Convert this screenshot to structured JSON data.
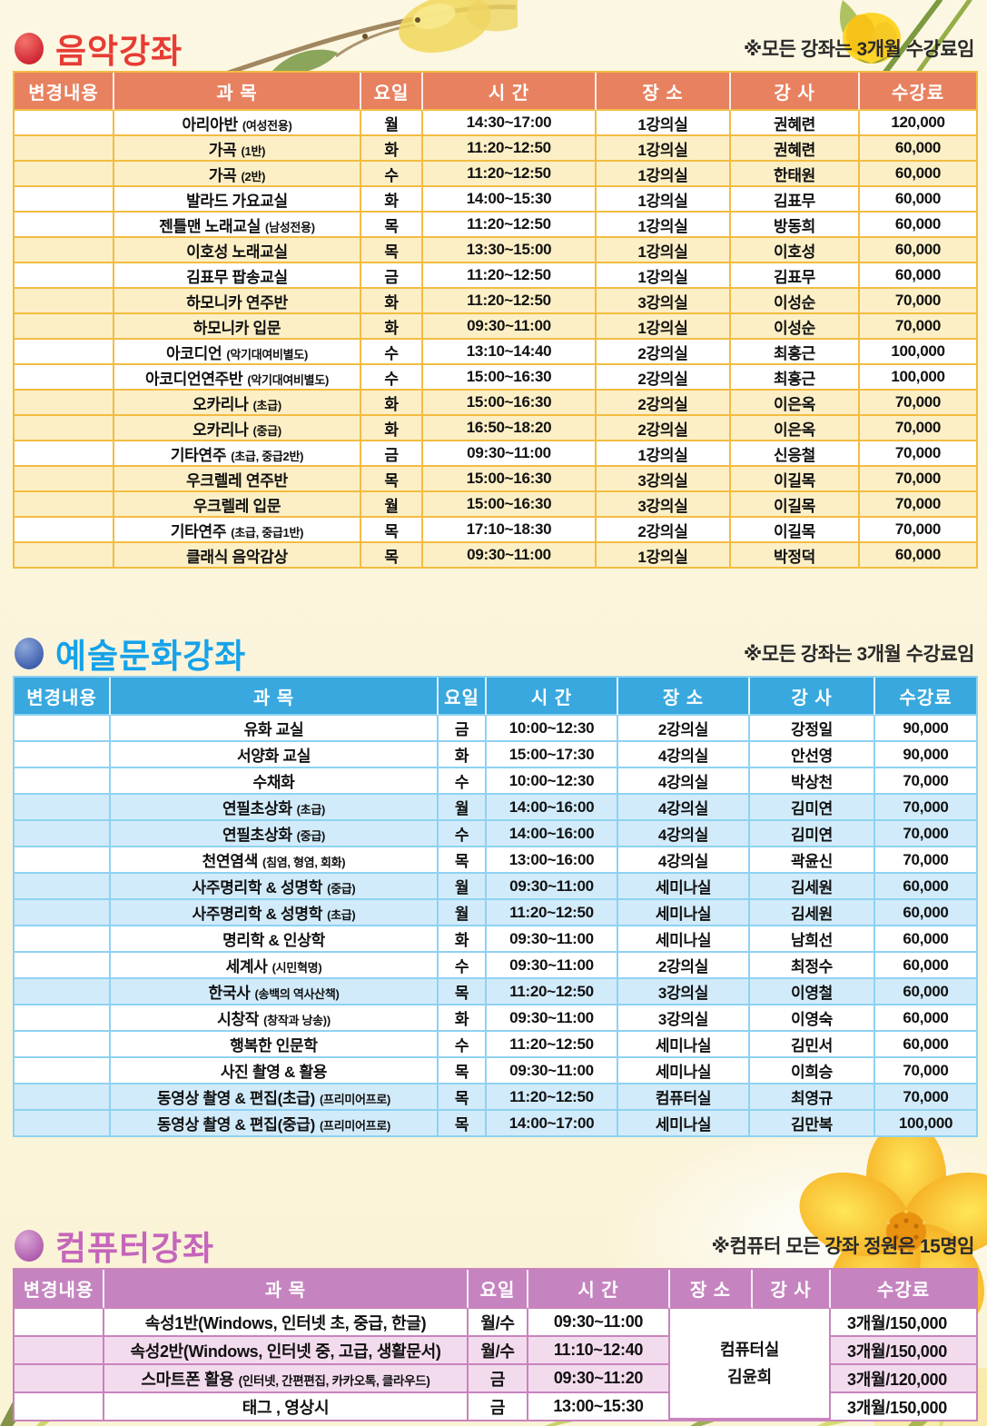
{
  "page": {
    "background": "#FBF4DA"
  },
  "music": {
    "title": "음악강좌",
    "note": "※모든 강좌는 3개월 수강료임",
    "headers": [
      "변경내용",
      "과 목",
      "요일",
      "시 간",
      "장 소",
      "강 사",
      "수강료"
    ],
    "colors": {
      "title": "#E73C35",
      "header_bg": "#E8815F",
      "border": "#F3BC41",
      "shade": "#FCEFC6",
      "bullet_hi": "#F3746A",
      "bullet_lo": "#CE2130"
    },
    "rows": [
      {
        "subject": "아리아반",
        "subject_note": "(여성전용)",
        "day": "월",
        "time": "14:30~17:00",
        "place": "1강의실",
        "instructor": "권혜련",
        "fee": "120,000",
        "shaded": false
      },
      {
        "subject": "가곡",
        "subject_note": "(1반)",
        "day": "화",
        "time": "11:20~12:50",
        "place": "1강의실",
        "instructor": "권혜련",
        "fee": "60,000",
        "shaded": true
      },
      {
        "subject": "가곡",
        "subject_note": "(2반)",
        "day": "수",
        "time": "11:20~12:50",
        "place": "1강의실",
        "instructor": "한태원",
        "fee": "60,000",
        "shaded": true
      },
      {
        "subject": "발라드 가요교실",
        "subject_note": "",
        "day": "화",
        "time": "14:00~15:30",
        "place": "1강의실",
        "instructor": "김표무",
        "fee": "60,000",
        "shaded": false
      },
      {
        "subject": "젠틀맨 노래교실",
        "subject_note": "(남성전용)",
        "day": "목",
        "time": "11:20~12:50",
        "place": "1강의실",
        "instructor": "방동희",
        "fee": "60,000",
        "shaded": false
      },
      {
        "subject": "이호성 노래교실",
        "subject_note": "",
        "day": "목",
        "time": "13:30~15:00",
        "place": "1강의실",
        "instructor": "이호성",
        "fee": "60,000",
        "shaded": true
      },
      {
        "subject": "김표무 팝송교실",
        "subject_note": "",
        "day": "금",
        "time": "11:20~12:50",
        "place": "1강의실",
        "instructor": "김표무",
        "fee": "60,000",
        "shaded": false
      },
      {
        "subject": "하모니카 연주반",
        "subject_note": "",
        "day": "화",
        "time": "11:20~12:50",
        "place": "3강의실",
        "instructor": "이성순",
        "fee": "70,000",
        "shaded": true
      },
      {
        "subject": "하모니카 입문",
        "subject_note": "",
        "day": "화",
        "time": "09:30~11:00",
        "place": "1강의실",
        "instructor": "이성순",
        "fee": "70,000",
        "shaded": true
      },
      {
        "subject": "아코디언",
        "subject_note": "(악기대여비별도)",
        "day": "수",
        "time": "13:10~14:40",
        "place": "2강의실",
        "instructor": "최홍근",
        "fee": "100,000",
        "shaded": false
      },
      {
        "subject": "아코디언연주반",
        "subject_note": "(악기대여비별도)",
        "day": "수",
        "time": "15:00~16:30",
        "place": "2강의실",
        "instructor": "최홍근",
        "fee": "100,000",
        "shaded": false
      },
      {
        "subject": "오카리나",
        "subject_note": "(초급)",
        "day": "화",
        "time": "15:00~16:30",
        "place": "2강의실",
        "instructor": "이은옥",
        "fee": "70,000",
        "shaded": true
      },
      {
        "subject": "오카리나",
        "subject_note": "(중급)",
        "day": "화",
        "time": "16:50~18:20",
        "place": "2강의실",
        "instructor": "이은옥",
        "fee": "70,000",
        "shaded": true
      },
      {
        "subject": "기타연주",
        "subject_note": "(초급, 중급2반)",
        "day": "금",
        "time": "09:30~11:00",
        "place": "1강의실",
        "instructor": "신응철",
        "fee": "70,000",
        "shaded": false
      },
      {
        "subject": "우크렐레 연주반",
        "subject_note": "",
        "day": "목",
        "time": "15:00~16:30",
        "place": "3강의실",
        "instructor": "이길목",
        "fee": "70,000",
        "shaded": true
      },
      {
        "subject": "우크렐레 입문",
        "subject_note": "",
        "day": "월",
        "time": "15:00~16:30",
        "place": "3강의실",
        "instructor": "이길목",
        "fee": "70,000",
        "shaded": true
      },
      {
        "subject": "기타연주",
        "subject_note": "(초급, 중급1반)",
        "day": "목",
        "time": "17:10~18:30",
        "place": "2강의실",
        "instructor": "이길목",
        "fee": "70,000",
        "shaded": false
      },
      {
        "subject": "클래식 음악감상",
        "subject_note": "",
        "day": "목",
        "time": "09:30~11:00",
        "place": "1강의실",
        "instructor": "박정덕",
        "fee": "60,000",
        "shaded": true
      }
    ]
  },
  "art": {
    "title": "예술문화강좌",
    "note": "※모든 강좌는 3개월 수강료임",
    "headers": [
      "변경내용",
      "과 목",
      "요일",
      "시 간",
      "장 소",
      "강 사",
      "수강료"
    ],
    "colors": {
      "title": "#16A2E9",
      "header_bg": "#38A8DF",
      "border": "#8ED2F3",
      "shade": "#D2EBFA",
      "bullet_hi": "#8FA8DB",
      "bullet_lo": "#3A5CAB"
    },
    "rows": [
      {
        "subject": "유화 교실",
        "subject_note": "",
        "day": "금",
        "time": "10:00~12:30",
        "place": "2강의실",
        "instructor": "강정일",
        "fee": "90,000",
        "shaded": false
      },
      {
        "subject": "서양화 교실",
        "subject_note": "",
        "day": "화",
        "time": "15:00~17:30",
        "place": "4강의실",
        "instructor": "안선영",
        "fee": "90,000",
        "shaded": false
      },
      {
        "subject": "수채화",
        "subject_note": "",
        "day": "수",
        "time": "10:00~12:30",
        "place": "4강의실",
        "instructor": "박상천",
        "fee": "70,000",
        "shaded": false
      },
      {
        "subject": "연필초상화",
        "subject_note": "(초급)",
        "day": "월",
        "time": "14:00~16:00",
        "place": "4강의실",
        "instructor": "김미연",
        "fee": "70,000",
        "shaded": true
      },
      {
        "subject": "연필초상화",
        "subject_note": "(중급)",
        "day": "수",
        "time": "14:00~16:00",
        "place": "4강의실",
        "instructor": "김미연",
        "fee": "70,000",
        "shaded": true
      },
      {
        "subject": "천연염색",
        "subject_note": "(침염, 형염, 회화)",
        "day": "목",
        "time": "13:00~16:00",
        "place": "4강의실",
        "instructor": "곽윤신",
        "fee": "70,000",
        "shaded": false
      },
      {
        "subject": "사주명리학 & 성명학",
        "subject_note": "(중급)",
        "day": "월",
        "time": "09:30~11:00",
        "place": "세미나실",
        "instructor": "김세원",
        "fee": "60,000",
        "shaded": true
      },
      {
        "subject": "사주명리학 & 성명학",
        "subject_note": "(초급)",
        "day": "월",
        "time": "11:20~12:50",
        "place": "세미나실",
        "instructor": "김세원",
        "fee": "60,000",
        "shaded": true
      },
      {
        "subject": "명리학 & 인상학",
        "subject_note": "",
        "day": "화",
        "time": "09:30~11:00",
        "place": "세미나실",
        "instructor": "남희선",
        "fee": "60,000",
        "shaded": false
      },
      {
        "subject": "세계사",
        "subject_note": "(시민혁명)",
        "day": "수",
        "time": "09:30~11:00",
        "place": "2강의실",
        "instructor": "최정수",
        "fee": "60,000",
        "shaded": false
      },
      {
        "subject": "한국사",
        "subject_note": "(송백의 역사산책)",
        "day": "목",
        "time": "11:20~12:50",
        "place": "3강의실",
        "instructor": "이영철",
        "fee": "60,000",
        "shaded": true
      },
      {
        "subject": "시창작",
        "subject_note": "(창작과 낭송))",
        "day": "화",
        "time": "09:30~11:00",
        "place": "3강의실",
        "instructor": "이영숙",
        "fee": "60,000",
        "shaded": false
      },
      {
        "subject": "행복한 인문학",
        "subject_note": "",
        "day": "수",
        "time": "11:20~12:50",
        "place": "세미나실",
        "instructor": "김민서",
        "fee": "60,000",
        "shaded": false
      },
      {
        "subject": "사진 촬영 & 활용",
        "subject_note": "",
        "day": "목",
        "time": "09:30~11:00",
        "place": "세미나실",
        "instructor": "이희승",
        "fee": "70,000",
        "shaded": false
      },
      {
        "subject": "동영상 촬영 & 편집(초급)",
        "subject_note": "(프리미어프로)",
        "day": "목",
        "time": "11:20~12:50",
        "place": "컴퓨터실",
        "instructor": "최영규",
        "fee": "70,000",
        "shaded": true
      },
      {
        "subject": "동영상 촬영 & 편집(중급)",
        "subject_note": "(프리미어프로)",
        "day": "목",
        "time": "14:00~17:00",
        "place": "세미나실",
        "instructor": "김만복",
        "fee": "100,000",
        "shaded": true
      }
    ]
  },
  "computer": {
    "title": "컴퓨터강좌",
    "note": "※컴퓨터 모든 강좌 정원은 15명임",
    "headers": [
      "변경내용",
      "과 목",
      "요일",
      "시 간",
      "장 소",
      "강 사",
      "수강료"
    ],
    "colors": {
      "title": "#C566BB",
      "header_bg": "#C584C0",
      "border": "#C983BD",
      "shade": "#F3DBEE",
      "bullet_hi": "#D9A8D6",
      "bullet_lo": "#AE58AC"
    },
    "merged_cell": {
      "lines": [
        "컴퓨터실",
        "김윤희"
      ]
    },
    "rows": [
      {
        "subject": "속성1반(Windows, 인터넷 초, 중급, 한글)",
        "subject_note": "",
        "day": "월/수",
        "time": "09:30~11:00",
        "fee": "3개월/150,000",
        "shaded": false
      },
      {
        "subject": "속성2반(Windows, 인터넷 중, 고급, 생활문서)",
        "subject_note": "",
        "day": "월/수",
        "time": "11:10~12:40",
        "fee": "3개월/150,000",
        "shaded": true
      },
      {
        "subject": "스마트폰 활용",
        "subject_note": "(인터넷, 간편편집, 카카오톡, 클라우드)",
        "day": "금",
        "time": "09:30~11:20",
        "fee": "3개월/120,000",
        "shaded": true
      },
      {
        "subject": "태그 , 영상시",
        "subject_note": "",
        "day": "금",
        "time": "13:00~15:30",
        "fee": "3개월/150,000",
        "shaded": false
      }
    ]
  }
}
